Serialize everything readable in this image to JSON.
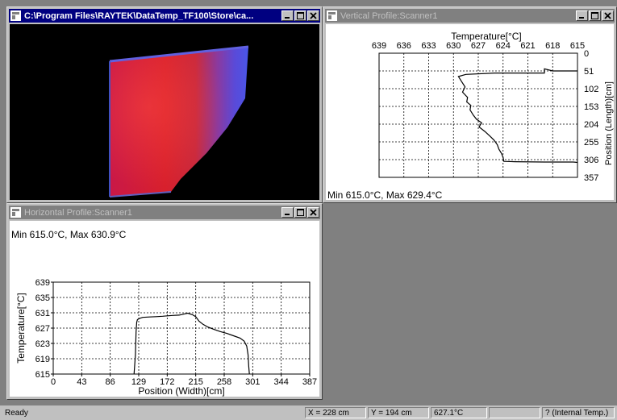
{
  "thermal_window": {
    "title": "C:\\Program Files\\RAYTEK\\DataTemp_TF100\\Store\\ca..."
  },
  "vertical_window": {
    "title": "Vertical Profile:Scanner1",
    "minmax": "Min  615.0°C, Max  629.4°C",
    "axis_title": "Temperature[°C]",
    "side_title": "Position (Length)[cm]",
    "ticks_x": [
      "639",
      "636",
      "633",
      "630",
      "627",
      "624",
      "621",
      "618",
      "615"
    ],
    "ticks_y": [
      "0",
      "51",
      "102",
      "153",
      "204",
      "255",
      "306",
      "357"
    ]
  },
  "horizontal_window": {
    "title": "Horizontal Profile:Scanner1",
    "minmax": "Min  615.0°C, Max  630.9°C"
  },
  "status": {
    "ready": "Ready",
    "x": "X = 228 cm",
    "y": "Y = 194 cm",
    "temp": "627.1°C",
    "mode": "? (Internal Temp.)"
  },
  "chart_data": [
    {
      "type": "line",
      "title": "",
      "xlabel": "Position (Width)[cm]",
      "ylabel": "Temperature[°C]",
      "xlim": [
        0,
        387
      ],
      "ylim": [
        615,
        639
      ],
      "xticks": [
        "0",
        "43",
        "86",
        "129",
        "172",
        "215",
        "258",
        "301",
        "344",
        "387"
      ],
      "yticks": [
        "615",
        "619",
        "623",
        "627",
        "631",
        "635",
        "639"
      ],
      "grid": true,
      "x": [
        122,
        124,
        125,
        126,
        127,
        130,
        135,
        145,
        155,
        165,
        172,
        180,
        190,
        198,
        203,
        210,
        215,
        220,
        226,
        233,
        242,
        252,
        262,
        272,
        282,
        288,
        292,
        294,
        295,
        296
      ],
      "y": [
        615,
        620,
        626,
        628.5,
        629.2,
        629.5,
        629.8,
        629.9,
        630.0,
        630.1,
        630.2,
        630.3,
        630.4,
        630.7,
        630.9,
        630.5,
        630.0,
        628.8,
        628.0,
        627.3,
        626.7,
        626.1,
        625.6,
        625.0,
        624.4,
        623.6,
        622.3,
        620.0,
        617.0,
        615.0
      ]
    },
    {
      "type": "line",
      "title": "",
      "xlabel": "Temperature[°C]",
      "ylabel": "Position (Length)[cm]",
      "xlim": [
        639,
        615
      ],
      "ylim": [
        0,
        357
      ],
      "grid": true,
      "x": [
        615,
        618,
        619,
        619,
        625,
        628.5,
        629.4,
        629.0,
        628.6,
        628.9,
        628.3,
        628.4,
        627.9,
        628.0,
        627.6,
        627.2,
        626.6,
        626.9,
        626.2,
        625.6,
        625.1,
        624.7,
        624.5,
        624.2,
        624.0,
        623.9,
        622.5,
        619.0,
        615.5,
        615.0
      ],
      "y": [
        51,
        51,
        45,
        57,
        57,
        61,
        67,
        82,
        97,
        112,
        127,
        140,
        150,
        163,
        178,
        190,
        200,
        212,
        225,
        238,
        250,
        263,
        276,
        288,
        300,
        311,
        312,
        313,
        313,
        314
      ]
    }
  ]
}
